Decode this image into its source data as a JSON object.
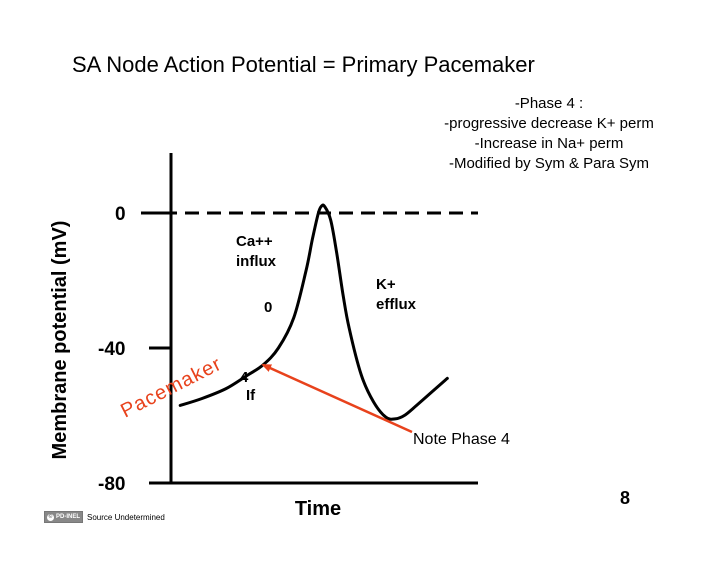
{
  "slide": {
    "title": "SA Node Action Potential = Primary Pacemaker",
    "notes": [
      "-Phase 4 :",
      "-progressive decrease K+ perm",
      "-Increase in Na+ perm",
      "-Modified by Sym & Para Sym"
    ],
    "slide_number": "8",
    "source_badge": "PD-INEL",
    "source_text": "Source Undetermined"
  },
  "chart_data": {
    "type": "line",
    "ylabel": "Membrane potential (mV)",
    "xlabel": "Time",
    "yticks": [
      "0",
      "-40",
      "-80"
    ],
    "ylim": [
      -80,
      10
    ],
    "xlim": [
      0,
      100
    ],
    "threshold_line_mv": 0,
    "series": [
      {
        "x": [
          3,
          10,
          18,
          25,
          30,
          35,
          40,
          44,
          46,
          48,
          49,
          50,
          52,
          54,
          56,
          58,
          62,
          66,
          70,
          73,
          76,
          80,
          85,
          90
        ],
        "y": [
          -57,
          -55,
          -52,
          -48,
          -45,
          -40,
          -31,
          -17,
          -8,
          0,
          2,
          2,
          -2,
          -12,
          -24,
          -34,
          -48,
          -56,
          -60.5,
          -61,
          -60,
          -57,
          -53,
          -49
        ]
      }
    ],
    "annotations": {
      "ca_influx": [
        "Ca++",
        "influx"
      ],
      "k_efflux": [
        "K+",
        "efflux"
      ],
      "phase_0": "0",
      "phase_4": "4",
      "if_label": "If",
      "pacemaker": "Pacemaker",
      "note_phase4": "Note Phase 4"
    },
    "arrow_target": {
      "x": 30,
      "y": -45
    },
    "colors": {
      "curve": "#000000",
      "arrow": "#e8421c",
      "pacemaker_text": "#e8421c"
    }
  }
}
